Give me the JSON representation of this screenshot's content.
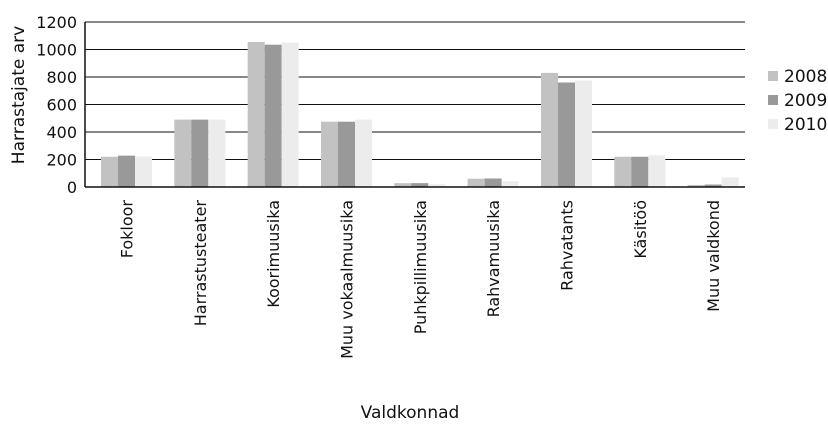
{
  "chart_data": {
    "type": "bar",
    "xlabel": "Valdkonnad",
    "ylabel": "Harrastajate arv",
    "ylim": [
      0,
      1200
    ],
    "yticks": [
      0,
      200,
      400,
      600,
      800,
      1000,
      1200
    ],
    "grid": true,
    "legend_position": "right",
    "categories": [
      "Fokloor",
      "Harrastusteater",
      "Koorimuusika",
      "Muu vokaalmuusika",
      "Puhkpillimuusika",
      "Rahvamuusika",
      "Rahvatants",
      "Käsitöö",
      "Muu valdkond"
    ],
    "series": [
      {
        "name": "2008",
        "color": "#c2c2c2",
        "values": [
          220,
          490,
          1055,
          475,
          28,
          60,
          830,
          220,
          15
        ]
      },
      {
        "name": "2009",
        "color": "#999999",
        "values": [
          228,
          490,
          1035,
          475,
          28,
          62,
          760,
          220,
          18
        ]
      },
      {
        "name": "2010",
        "color": "#ececec",
        "values": [
          222,
          490,
          1050,
          490,
          20,
          42,
          775,
          230,
          70
        ]
      }
    ]
  }
}
